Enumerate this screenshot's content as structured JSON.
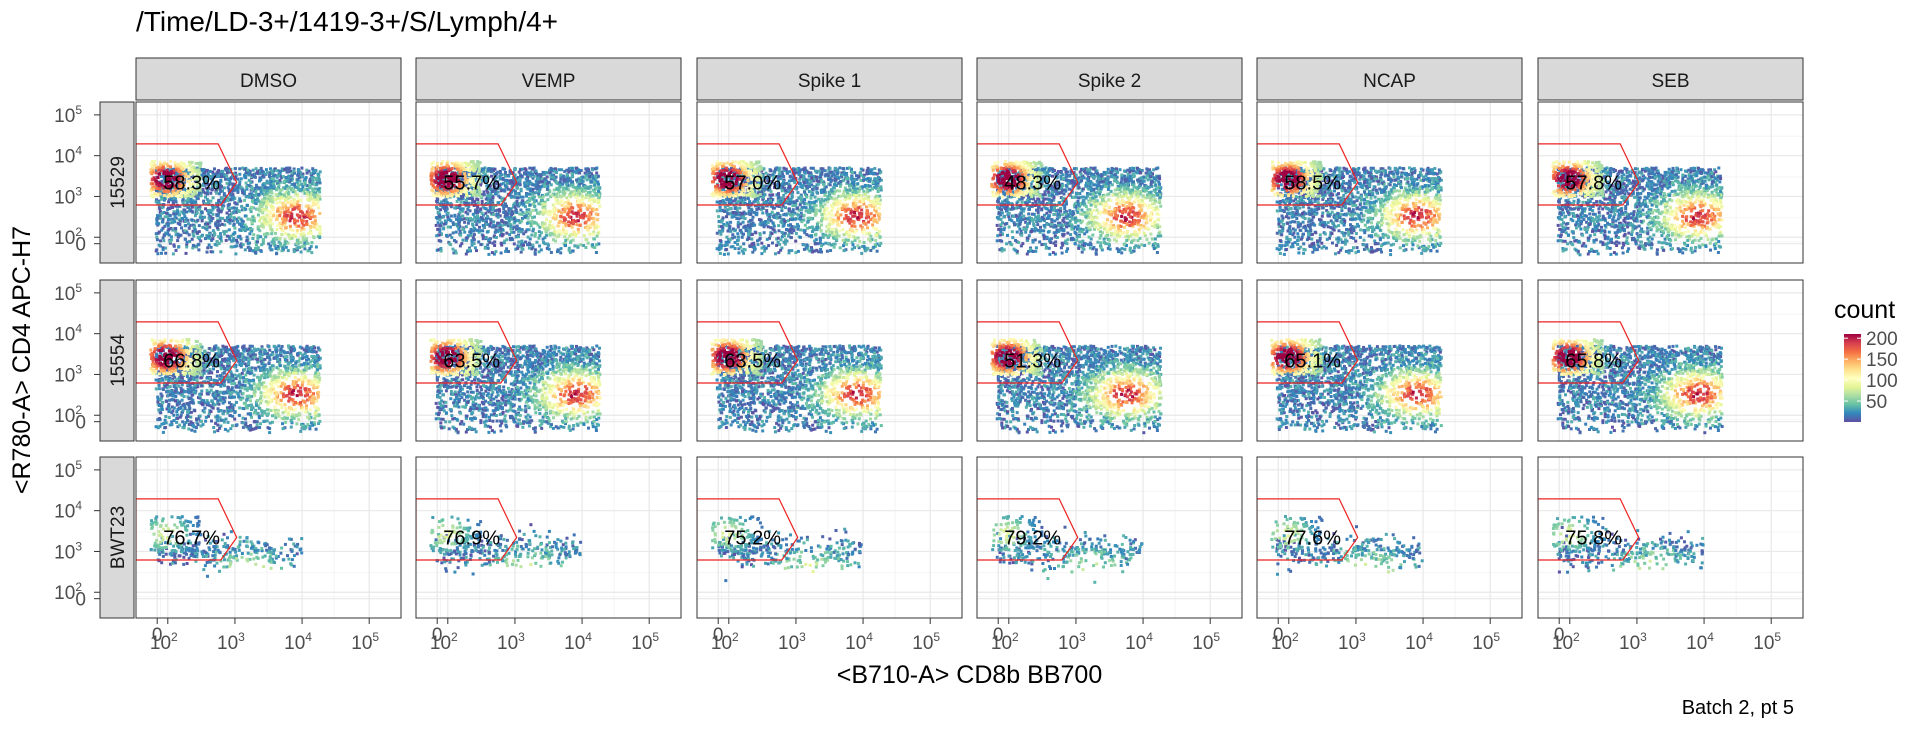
{
  "title": "/Time/LD-3+/1419-3+/S/Lymph/4+",
  "caption": "Batch 2, pt 5",
  "chart_data": {
    "type": "heatmap",
    "subtype": "faceted flow cytometry 2D density plot with polygon gate",
    "title": "/Time/LD-3+/1419-3+/S/Lymph/4+",
    "xlabel": "<B710-A> CD8b BB700",
    "ylabel": "<R780-A> CD4 APC-H7",
    "caption": "Batch 2, pt 5",
    "x_scale": "biexponential",
    "y_scale": "biexponential",
    "x_ticks": [
      0,
      100,
      1000,
      10000,
      100000
    ],
    "x_tick_labels": [
      {
        "base": "0",
        "exp": ""
      },
      {
        "base": "10",
        "exp": "2"
      },
      {
        "base": "10",
        "exp": "3"
      },
      {
        "base": "10",
        "exp": "4"
      },
      {
        "base": "10",
        "exp": "5"
      }
    ],
    "y_ticks": [
      0,
      100,
      1000,
      10000,
      100000
    ],
    "y_tick_labels": [
      {
        "base": "0",
        "exp": ""
      },
      {
        "base": "10",
        "exp": "2"
      },
      {
        "base": "10",
        "exp": "3"
      },
      {
        "base": "10",
        "exp": "4"
      },
      {
        "base": "10",
        "exp": "5"
      }
    ],
    "grid": true,
    "columns": [
      "DMSO",
      "VEMP",
      "Spike 1",
      "Spike 2",
      "NCAP",
      "SEB"
    ],
    "rows": [
      "15529",
      "15554",
      "BWT23"
    ],
    "gate_color": "#ee2222",
    "gate_percentages": [
      [
        "58.3%",
        "55.7%",
        "57.0%",
        "48.3%",
        "58.5%",
        "57.8%"
      ],
      [
        "66.8%",
        "63.5%",
        "63.5%",
        "51.3%",
        "65.1%",
        "65.8%"
      ],
      [
        "76.7%",
        "76.9%",
        "75.2%",
        "79.2%",
        "77.6%",
        "75.8%"
      ]
    ],
    "legend": {
      "title": "count",
      "position": "right",
      "breaks": [
        50,
        100,
        150,
        200
      ],
      "labels": [
        "50",
        "100",
        "150",
        "200"
      ],
      "colors": [
        "#5e4fa2",
        "#3288bd",
        "#66c2a5",
        "#abdda4",
        "#e6f598",
        "#ffffbf",
        "#fee08b",
        "#fdae61",
        "#f46d43",
        "#d53e4f",
        "#9e0142"
      ]
    }
  }
}
